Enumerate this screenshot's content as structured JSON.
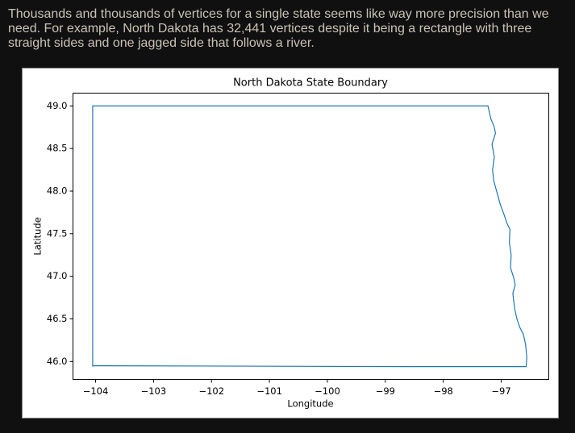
{
  "intro": "Thousands and thousands of vertices for a single state seems like way more precision than we need. For example, North Dakota has 32,441 vertices despite it being a rectangle with three straight sides and one jagged side that follows a river.",
  "chart_data": {
    "type": "line",
    "title": "North Dakota State Boundary",
    "xlabel": "Longitude",
    "ylabel": "Latitude",
    "x": [
      -104.05,
      -104.05,
      -97.23,
      -97.18,
      -97.12,
      -97.1,
      -97.16,
      -97.12,
      -97.15,
      -97.13,
      -97.06,
      -97.02,
      -96.95,
      -96.9,
      -96.85,
      -96.86,
      -96.83,
      -96.84,
      -96.78,
      -96.76,
      -96.8,
      -96.77,
      -96.73,
      -96.68,
      -96.62,
      -96.58,
      -96.56,
      -96.57,
      -98.4,
      -104.05
    ],
    "series": [
      {
        "color": "#1f77b4",
        "values": [
          45.94,
          49.0,
          49.0,
          48.85,
          48.75,
          48.68,
          48.55,
          48.4,
          48.25,
          48.12,
          47.95,
          47.85,
          47.72,
          47.62,
          47.55,
          47.4,
          47.25,
          47.1,
          46.97,
          46.9,
          46.8,
          46.62,
          46.5,
          46.4,
          46.32,
          46.2,
          46.05,
          45.94,
          45.94,
          45.95
        ]
      }
    ],
    "xlim": [
      -104.39,
      -96.18
    ],
    "ylim": [
      45.79,
      49.15
    ],
    "xticks": [
      {
        "value": -104,
        "label": "−104"
      },
      {
        "value": -103,
        "label": "−103"
      },
      {
        "value": -102,
        "label": "−102"
      },
      {
        "value": -101,
        "label": "−101"
      },
      {
        "value": -100,
        "label": "−100"
      },
      {
        "value": -99,
        "label": "−99"
      },
      {
        "value": -98,
        "label": "−98"
      },
      {
        "value": -97,
        "label": "−97"
      }
    ],
    "yticks": [
      {
        "value": 46,
        "label": "46.0"
      },
      {
        "value": 46.5,
        "label": "46.5"
      },
      {
        "value": 47,
        "label": "47.0"
      },
      {
        "value": 47.5,
        "label": "47.5"
      },
      {
        "value": 48,
        "label": "48.0"
      },
      {
        "value": 48.5,
        "label": "48.5"
      },
      {
        "value": 49,
        "label": "49.0"
      }
    ]
  }
}
